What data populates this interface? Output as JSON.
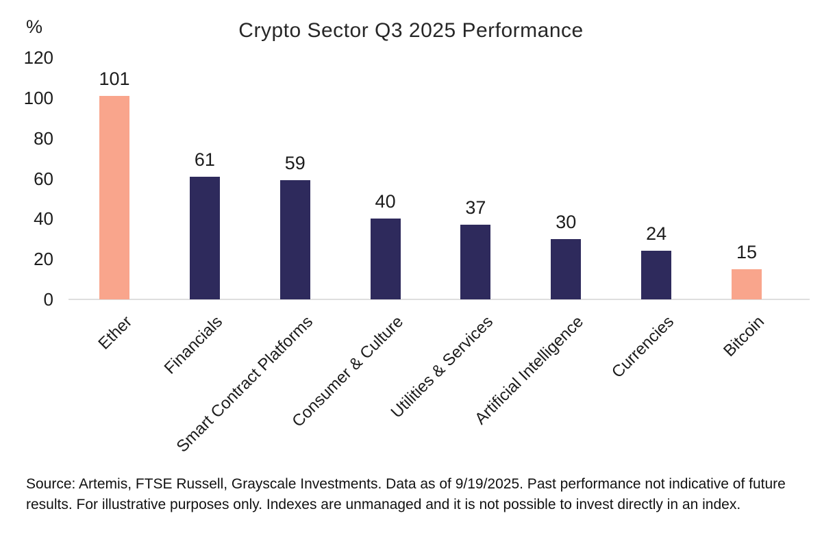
{
  "title": "Crypto Sector Q3 2025 Performance",
  "y_axis_unit": "%",
  "source_note": "Source: Artemis, FTSE Russell, Grayscale Investments. Data as of 9/19/2025. Past performance not indicative of future results. For illustrative purposes only. Indexes are unmanaged and it is not possible to invest directly in an index.",
  "colors": {
    "highlight_bar": "#F9A58C",
    "default_bar": "#2E2A5C",
    "axis_line": "#DEDEDE",
    "text": "#1C1C1C"
  },
  "chart_data": {
    "type": "bar",
    "title": "Crypto Sector Q3 2025 Performance",
    "xlabel": "",
    "ylabel": "%",
    "categories": [
      "Ether",
      "Financials",
      "Smart Contract Platforms",
      "Consumer & Culture",
      "Utilities & Services",
      "Artificial Intelligence",
      "Currencies",
      "Bitcoin"
    ],
    "values": [
      101,
      61,
      59,
      40,
      37,
      30,
      24,
      15
    ],
    "bar_colors": [
      "#F9A58C",
      "#2E2A5C",
      "#2E2A5C",
      "#2E2A5C",
      "#2E2A5C",
      "#2E2A5C",
      "#2E2A5C",
      "#F9A58C"
    ],
    "y_ticks": [
      0,
      20,
      40,
      60,
      80,
      100,
      120
    ],
    "ylim": [
      0,
      120
    ],
    "grid": false,
    "legend": false,
    "value_labels_shown": true,
    "x_tick_rotation_deg": 45
  }
}
